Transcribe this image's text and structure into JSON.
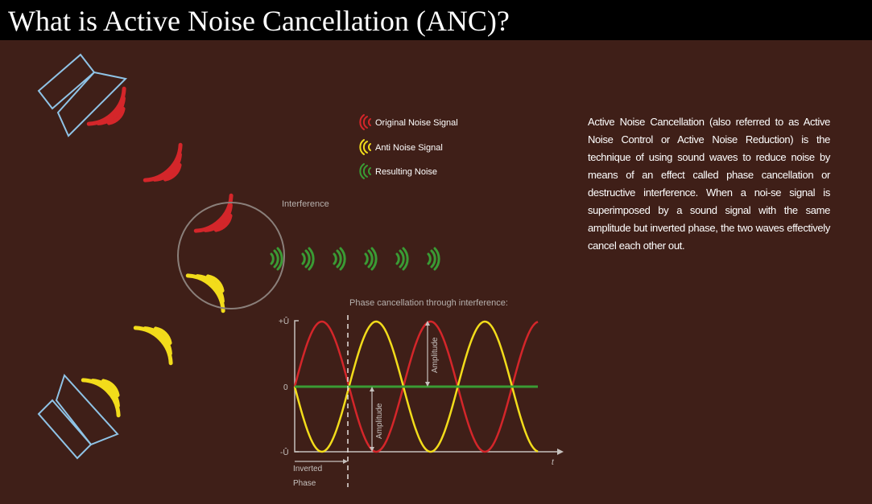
{
  "title": "What is Active Noise Cancellation (ANC)?",
  "description": "Active Noise Cancellation (also referred to as Active Noise Control or Active Noise Reduction) is the technique of using sound waves to reduce noise by means of an effect called phase cancellation or destructive interference. When a noi-se signal is superimposed by a sound signal with the same amplitude but inverted phase, the two waves effectively cancel each other out.",
  "legend": [
    {
      "label": "Original Noise Signal",
      "color": "#d4262a"
    },
    {
      "label": "Anti Noise Signal",
      "color": "#f2dc1b"
    },
    {
      "label": "Resulting Noise",
      "color": "#3a9b34"
    }
  ],
  "interference_label": "Interference",
  "graph": {
    "title": "Phase cancellation through interference:",
    "y_max_label": "+Û",
    "y_zero_label": "0",
    "y_min_label": "-Û",
    "x_axis_label": "t",
    "amplitude_label": "Amplitude",
    "inverted_phase_label_1": "Inverted",
    "inverted_phase_label_2": "Phase"
  },
  "colors": {
    "background": "#3f1f18",
    "noise": "#d4262a",
    "anti_noise": "#f2dc1b",
    "resulting": "#3a9b34",
    "speaker_outline": "#8fc3e6"
  },
  "icons": [
    "speaker-icon-top",
    "speaker-icon-bottom"
  ]
}
